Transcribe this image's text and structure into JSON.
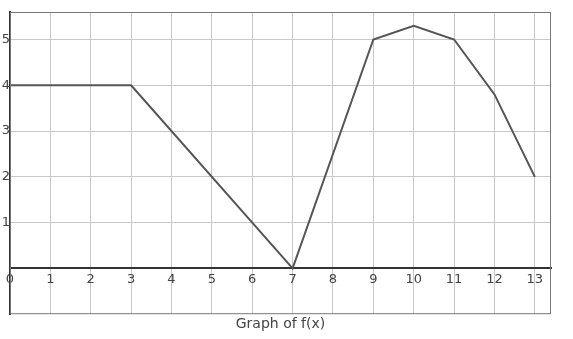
{
  "chart_data": {
    "type": "line",
    "title": "Graph of f(x)",
    "x": [
      0,
      3,
      7,
      9,
      10,
      11,
      12,
      13
    ],
    "values": [
      4,
      4,
      0,
      5,
      5.3,
      5,
      3.8,
      2
    ],
    "color": "#555555",
    "xlim": [
      0,
      13.4
    ],
    "ylim": [
      -1,
      5.6
    ],
    "xticks": [
      0,
      1,
      2,
      3,
      4,
      5,
      6,
      7,
      8,
      9,
      10,
      11,
      12,
      13
    ],
    "yticks": [
      1,
      2,
      3,
      4,
      5
    ],
    "grid": true
  }
}
